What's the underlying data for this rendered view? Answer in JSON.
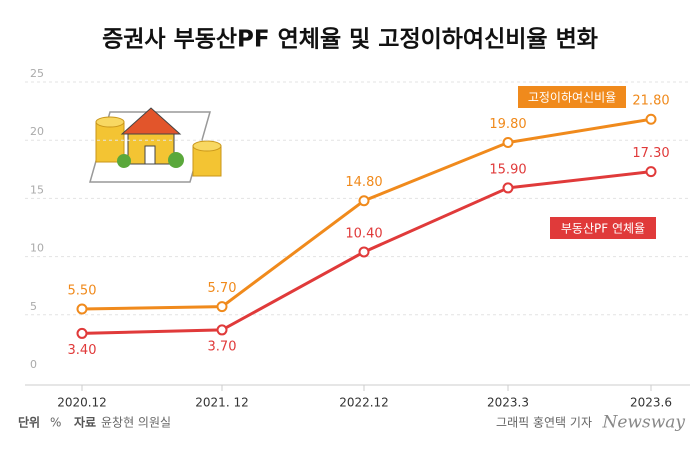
{
  "chart_data": {
    "type": "line",
    "title": "증권사 부동산PF 연체율 및 고정이하여신비율 변화",
    "categories": [
      "2020.12",
      "2021. 12",
      "2022.12",
      "2023.3",
      "2023.6"
    ],
    "series": [
      {
        "name": "고정이하여신비율",
        "color": "#f08a1c",
        "values": [
          5.5,
          5.7,
          14.8,
          19.8,
          21.8
        ],
        "value_labels": [
          "5.50",
          "5.70",
          "14.80",
          "19.80",
          "21.80"
        ]
      },
      {
        "name": "부동산PF 연체율",
        "color": "#e03a3a",
        "values": [
          3.4,
          3.7,
          10.4,
          15.9,
          17.3
        ],
        "value_labels": [
          "3.40",
          "3.70",
          "10.40",
          "15.90",
          "17.30"
        ]
      }
    ],
    "ylim": [
      0,
      25
    ],
    "yticks": [
      0,
      5,
      10,
      15,
      20,
      25
    ],
    "grid": true
  },
  "footer": {
    "unit_label": "단위",
    "unit": "%",
    "source_label": "자료",
    "source": "윤창현 의원실",
    "credit": "그래픽 홍연택 기자",
    "brand": "Newsway"
  }
}
